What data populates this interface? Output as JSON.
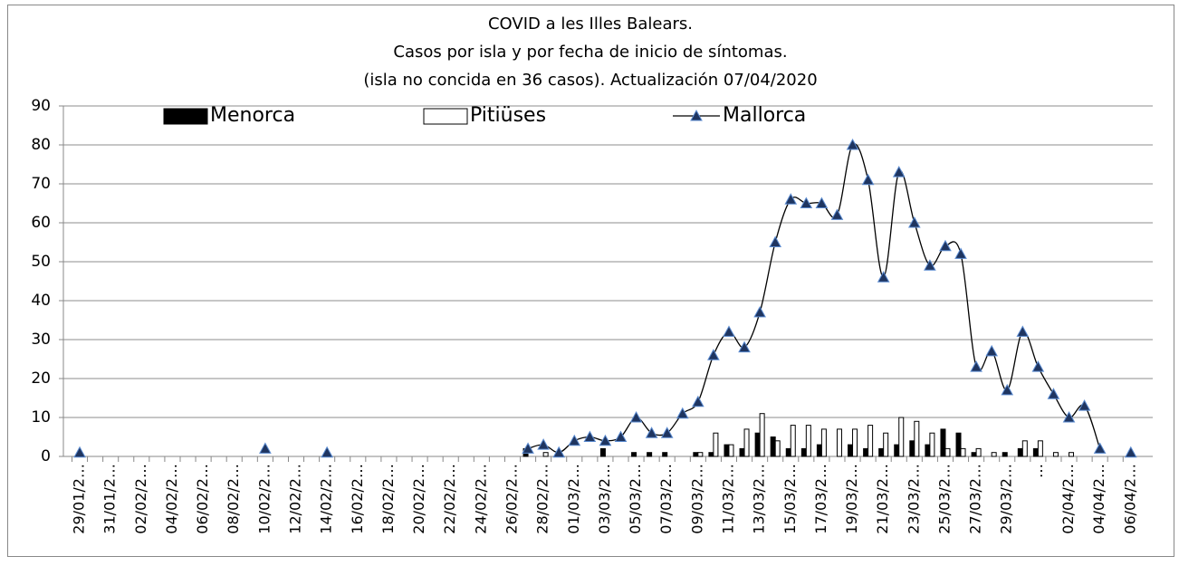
{
  "chart_data": {
    "type": "bar-line",
    "title": [
      "COVID a les Illes Balears.",
      "Casos por isla y por fecha de inicio de síntomas.",
      "(isla no concida en 36 casos). Actualización 07/04/2020"
    ],
    "categories": [
      "29/01/2…",
      null,
      "31/01/2…",
      null,
      "02/02/2…",
      null,
      "04/02/2…",
      null,
      "06/02/2…",
      null,
      "08/02/2…",
      null,
      "10/02/2…",
      null,
      "12/02/2…",
      null,
      "14/02/2…",
      null,
      "16/02/2…",
      null,
      "18/02/2…",
      null,
      "20/02/2…",
      null,
      "22/02/2…",
      null,
      "24/02/2…",
      null,
      "26/02/2…",
      null,
      "28/02/2…",
      null,
      "01/03/2…",
      null,
      "03/03/2…",
      null,
      "05/03/2…",
      null,
      "07/03/2…",
      null,
      "09/03/2…",
      null,
      "11/03/2…",
      null,
      "13/03/2…",
      null,
      "15/03/2…",
      null,
      "17/03/2…",
      null,
      "19/03/2…",
      null,
      "21/03/2…",
      null,
      "23/03/2…",
      null,
      "25/03/2…",
      null,
      "27/03/2…",
      null,
      "29/03/2…",
      null,
      "…",
      null,
      "02/04/2…",
      null,
      "04/04/2…",
      null,
      "06/04/2…"
    ],
    "series": [
      {
        "name": "Menorca",
        "kind": "bar",
        "color": "#000000",
        "values": [
          0,
          0,
          0,
          0,
          0,
          0,
          0,
          0,
          0,
          0,
          0,
          0,
          0,
          0,
          0,
          0,
          0,
          0,
          0,
          0,
          0,
          0,
          0,
          0,
          0,
          0,
          0,
          0,
          0,
          2,
          0,
          0,
          0,
          0,
          2,
          0,
          1,
          1,
          1,
          0,
          1,
          1,
          3,
          2,
          6,
          5,
          2,
          2,
          3,
          0,
          3,
          2,
          2,
          3,
          4,
          3,
          7,
          6,
          1,
          0,
          1,
          2,
          2,
          0,
          0,
          0,
          0,
          0,
          0
        ]
      },
      {
        "name": "Pitiüses",
        "kind": "bar",
        "color": "#ffffff",
        "values": [
          0,
          0,
          0,
          0,
          0,
          0,
          0,
          0,
          0,
          0,
          0,
          0,
          0,
          0,
          0,
          0,
          0,
          0,
          0,
          0,
          0,
          0,
          0,
          0,
          0,
          0,
          0,
          0,
          0,
          0,
          1,
          0,
          0,
          0,
          0,
          0,
          0,
          0,
          0,
          0,
          1,
          6,
          3,
          7,
          11,
          4,
          8,
          8,
          7,
          7,
          7,
          8,
          6,
          10,
          9,
          6,
          2,
          2,
          2,
          1,
          0,
          4,
          4,
          1,
          1,
          0,
          0,
          0,
          0
        ]
      },
      {
        "name": "Mallorca",
        "kind": "line",
        "color": "#000000",
        "marker_color": "#1f3560",
        "values": [
          1,
          null,
          null,
          null,
          null,
          null,
          null,
          null,
          null,
          null,
          null,
          null,
          2,
          null,
          null,
          null,
          1,
          null,
          null,
          null,
          null,
          null,
          null,
          null,
          null,
          null,
          null,
          null,
          null,
          2,
          3,
          1,
          4,
          5,
          4,
          5,
          10,
          6,
          6,
          11,
          14,
          26,
          32,
          28,
          37,
          55,
          66,
          65,
          65,
          62,
          80,
          71,
          46,
          73,
          60,
          49,
          54,
          52,
          23,
          27,
          17,
          32,
          23,
          16,
          10,
          13,
          2,
          null,
          1
        ]
      }
    ],
    "ylim": [
      0,
      90
    ],
    "yticks": [
      0,
      10,
      20,
      30,
      40,
      50,
      60,
      70,
      80,
      90
    ],
    "grid": true,
    "legend": "top"
  }
}
